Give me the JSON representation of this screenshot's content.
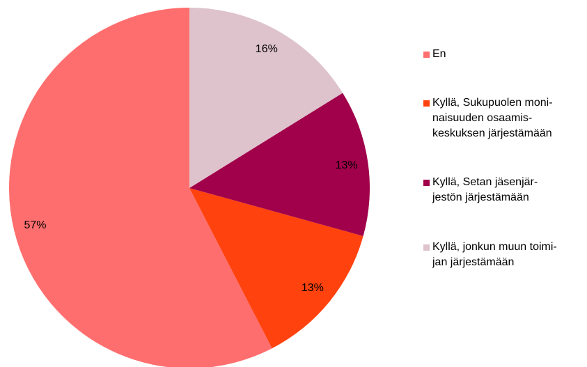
{
  "chart_data": {
    "type": "pie",
    "categories": [
      "En",
      "Kyllä, Sukupuolen moni-\nnaisuuden osaamis-\nkeskuksen järjestämään",
      "Kyllä, Setan jäsenjär-\njestön järjestämään",
      "Kyllä, jonkun muun toimi-\njan järjestämään"
    ],
    "values": [
      57,
      13,
      13,
      16
    ],
    "value_labels": [
      "57%",
      "13%",
      "13%",
      "16%"
    ],
    "colors": [
      "#ff6e6e",
      "#ff420e",
      "#a1004a",
      "#dec3cc"
    ],
    "legend": "right"
  }
}
